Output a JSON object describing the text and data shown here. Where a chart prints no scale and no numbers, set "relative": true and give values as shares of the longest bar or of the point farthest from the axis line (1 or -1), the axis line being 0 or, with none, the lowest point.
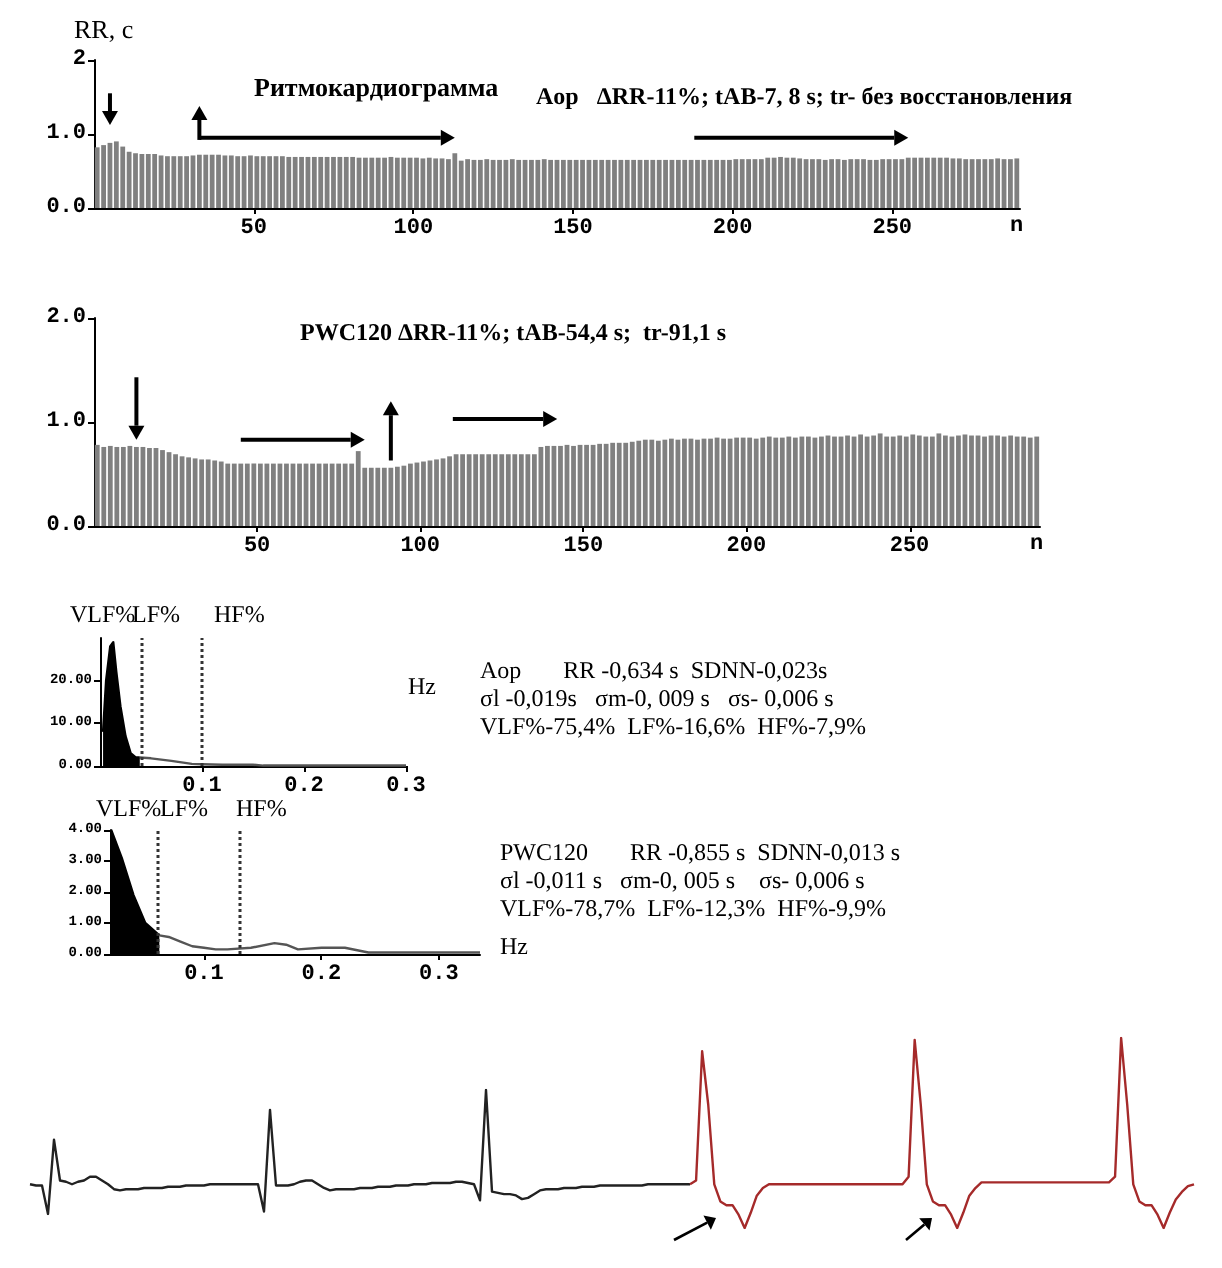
{
  "chart_data": [
    {
      "type": "bar",
      "title": "Ритмокардиограмма",
      "ylabel": "RR, с",
      "xlabel": "n",
      "annotations": [
        "Aop   ΔRR-11%; tAB-7, 8 s; tr- без восстановления"
      ],
      "color": "#808080",
      "xlim": [
        0,
        290
      ],
      "ylim": [
        0,
        2
      ],
      "xticks": [
        50,
        100,
        150,
        200,
        250
      ],
      "yticks": [
        {
          "value": 0,
          "label": "0.0"
        },
        {
          "value": 1,
          "label": "1.0"
        },
        {
          "value": 2,
          "label": "2"
        }
      ],
      "x": [
        1,
        3,
        5,
        7,
        9,
        11,
        13,
        15,
        17,
        19,
        21,
        23,
        25,
        27,
        29,
        31,
        33,
        35,
        37,
        39,
        41,
        43,
        45,
        47,
        49,
        51,
        53,
        55,
        57,
        59,
        61,
        63,
        65,
        67,
        69,
        71,
        73,
        75,
        77,
        79,
        81,
        83,
        85,
        87,
        89,
        91,
        93,
        95,
        97,
        99,
        101,
        103,
        105,
        107,
        109,
        111,
        113,
        115,
        117,
        119,
        121,
        123,
        125,
        127,
        129,
        131,
        133,
        135,
        137,
        139,
        141,
        143,
        145,
        147,
        149,
        151,
        153,
        155,
        157,
        159,
        161,
        163,
        165,
        167,
        169,
        171,
        173,
        175,
        177,
        179,
        181,
        183,
        185,
        187,
        189,
        191,
        193,
        195,
        197,
        199,
        201,
        203,
        205,
        207,
        209,
        211,
        213,
        215,
        217,
        219,
        221,
        223,
        225,
        227,
        229,
        231,
        233,
        235,
        237,
        239,
        241,
        243,
        245,
        247,
        249,
        251,
        253,
        255,
        257,
        259,
        261,
        263,
        265,
        267,
        269,
        271,
        273,
        275,
        277,
        279,
        281,
        283,
        285,
        287,
        289
      ],
      "values": [
        0.82,
        0.85,
        0.88,
        0.9,
        0.83,
        0.76,
        0.74,
        0.73,
        0.73,
        0.73,
        0.71,
        0.7,
        0.7,
        0.7,
        0.7,
        0.71,
        0.72,
        0.72,
        0.72,
        0.72,
        0.71,
        0.71,
        0.7,
        0.7,
        0.71,
        0.7,
        0.7,
        0.7,
        0.7,
        0.7,
        0.69,
        0.69,
        0.69,
        0.69,
        0.69,
        0.69,
        0.69,
        0.69,
        0.69,
        0.69,
        0.69,
        0.68,
        0.68,
        0.68,
        0.68,
        0.68,
        0.69,
        0.68,
        0.68,
        0.68,
        0.68,
        0.67,
        0.68,
        0.67,
        0.67,
        0.66,
        0.74,
        0.64,
        0.66,
        0.65,
        0.65,
        0.66,
        0.65,
        0.65,
        0.65,
        0.66,
        0.65,
        0.65,
        0.65,
        0.65,
        0.66,
        0.65,
        0.65,
        0.65,
        0.65,
        0.65,
        0.65,
        0.65,
        0.65,
        0.65,
        0.65,
        0.65,
        0.65,
        0.65,
        0.65,
        0.65,
        0.65,
        0.65,
        0.65,
        0.65,
        0.65,
        0.65,
        0.65,
        0.65,
        0.65,
        0.65,
        0.65,
        0.65,
        0.65,
        0.65,
        0.66,
        0.66,
        0.66,
        0.66,
        0.66,
        0.68,
        0.68,
        0.69,
        0.68,
        0.68,
        0.67,
        0.66,
        0.66,
        0.66,
        0.65,
        0.66,
        0.66,
        0.65,
        0.66,
        0.66,
        0.66,
        0.65,
        0.65,
        0.66,
        0.66,
        0.66,
        0.66,
        0.68,
        0.68,
        0.68,
        0.68,
        0.68,
        0.68,
        0.68,
        0.67,
        0.67,
        0.66,
        0.66,
        0.66,
        0.66,
        0.66,
        0.67,
        0.66,
        0.66,
        0.67
      ]
    },
    {
      "type": "bar",
      "xlabel": "n",
      "annotations": [
        "PWC120 ΔRR-11%; tAB-54,4 s;  tr-91,1 s"
      ],
      "color": "#808080",
      "xlim": [
        0,
        290
      ],
      "ylim": [
        0,
        2
      ],
      "xticks": [
        50,
        100,
        150,
        200,
        250
      ],
      "yticks": [
        {
          "value": 0,
          "label": "0.0"
        },
        {
          "value": 1,
          "label": "1.0"
        },
        {
          "value": 2,
          "label": "2.0"
        }
      ],
      "x": [
        1,
        3,
        5,
        7,
        9,
        11,
        13,
        15,
        17,
        19,
        21,
        23,
        25,
        27,
        29,
        31,
        33,
        35,
        37,
        39,
        41,
        43,
        45,
        47,
        49,
        51,
        53,
        55,
        57,
        59,
        61,
        63,
        65,
        67,
        69,
        71,
        73,
        75,
        77,
        79,
        81,
        83,
        85,
        87,
        89,
        91,
        93,
        95,
        97,
        99,
        101,
        103,
        105,
        107,
        109,
        111,
        113,
        115,
        117,
        119,
        121,
        123,
        125,
        127,
        129,
        131,
        133,
        135,
        137,
        139,
        141,
        143,
        145,
        147,
        149,
        151,
        153,
        155,
        157,
        159,
        161,
        163,
        165,
        167,
        169,
        171,
        173,
        175,
        177,
        179,
        181,
        183,
        185,
        187,
        189,
        191,
        193,
        195,
        197,
        199,
        201,
        203,
        205,
        207,
        209,
        211,
        213,
        215,
        217,
        219,
        221,
        223,
        225,
        227,
        229,
        231,
        233,
        235,
        237,
        239,
        241,
        243,
        245,
        247,
        249,
        251,
        253,
        255,
        257,
        259,
        261,
        263,
        265,
        267,
        269,
        271,
        273,
        275,
        277,
        279,
        281,
        283,
        285,
        287,
        289
      ],
      "values": [
        0.78,
        0.76,
        0.77,
        0.76,
        0.76,
        0.77,
        0.76,
        0.76,
        0.75,
        0.75,
        0.73,
        0.71,
        0.69,
        0.67,
        0.66,
        0.65,
        0.64,
        0.64,
        0.63,
        0.62,
        0.6,
        0.6,
        0.6,
        0.6,
        0.6,
        0.6,
        0.6,
        0.6,
        0.6,
        0.6,
        0.6,
        0.6,
        0.6,
        0.6,
        0.6,
        0.6,
        0.6,
        0.6,
        0.6,
        0.6,
        0.72,
        0.56,
        0.56,
        0.56,
        0.56,
        0.56,
        0.57,
        0.58,
        0.6,
        0.61,
        0.62,
        0.63,
        0.64,
        0.65,
        0.67,
        0.69,
        0.69,
        0.69,
        0.69,
        0.69,
        0.69,
        0.69,
        0.69,
        0.69,
        0.69,
        0.69,
        0.69,
        0.69,
        0.76,
        0.77,
        0.77,
        0.77,
        0.78,
        0.77,
        0.78,
        0.78,
        0.78,
        0.79,
        0.79,
        0.8,
        0.8,
        0.8,
        0.81,
        0.82,
        0.83,
        0.83,
        0.82,
        0.83,
        0.84,
        0.83,
        0.84,
        0.84,
        0.83,
        0.84,
        0.84,
        0.85,
        0.84,
        0.84,
        0.85,
        0.85,
        0.85,
        0.84,
        0.85,
        0.86,
        0.85,
        0.85,
        0.86,
        0.85,
        0.86,
        0.86,
        0.85,
        0.86,
        0.87,
        0.86,
        0.86,
        0.87,
        0.86,
        0.88,
        0.86,
        0.87,
        0.89,
        0.86,
        0.86,
        0.87,
        0.86,
        0.88,
        0.87,
        0.86,
        0.86,
        0.89,
        0.87,
        0.86,
        0.87,
        0.88,
        0.87,
        0.87,
        0.86,
        0.87,
        0.87,
        0.86,
        0.87,
        0.86,
        0.86,
        0.85,
        0.86
      ]
    },
    {
      "type": "line",
      "xlabel": "Hz",
      "annotations": [
        "VLF%",
        "LF%",
        "HF%",
        "Aop       RR -0,634 s  SDNN-0,023s",
        "σl -0,019s   σm-0, 009 s   σs- 0,006 s",
        "VLF%-75,4%  LF%-16,6%  HF%-7,9%"
      ],
      "xlim": [
        0,
        0.3
      ],
      "ylim": [
        0,
        30
      ],
      "xticks": [
        0.1,
        0.2,
        0.3
      ],
      "yticks": [
        {
          "value": 0,
          "label": "0.00"
        },
        {
          "value": 10,
          "label": "10.00"
        },
        {
          "value": 20,
          "label": "20.00"
        }
      ],
      "ref_lines": [
        {
          "axis": "x",
          "value": 0.039,
          "line_style": "dotted",
          "color": "#333333"
        },
        {
          "axis": "x",
          "value": 0.1,
          "line_style": "dotted",
          "color": "#333333"
        }
      ],
      "series": [
        {
          "type": "area",
          "color": "#000000",
          "x": [
            0.003,
            0.006,
            0.01,
            0.013,
            0.016,
            0.02,
            0.025,
            0.03,
            0.035,
            0.039
          ],
          "values": [
            8,
            20,
            28,
            29,
            22,
            14,
            7,
            3,
            2,
            2
          ]
        },
        {
          "color": "#555555",
          "x": [
            0.039,
            0.05,
            0.07,
            0.09,
            0.1,
            0.12,
            0.15,
            0.16,
            0.2,
            0.3
          ],
          "values": [
            2,
            1.8,
            1.2,
            0.5,
            0.4,
            0.3,
            0.3,
            0.1,
            0.1,
            0.1
          ]
        }
      ]
    },
    {
      "type": "line",
      "xlabel": "Hz",
      "annotations": [
        "VLF%",
        "LF%",
        "HF%",
        "PWC120       RR -0,855 s  SDNN-0,013 s",
        "σl -0,011 s   σm-0, 005 s    σs- 0,006 s",
        "VLF%-78,7%  LF%-12,3%  HF%-9,9%"
      ],
      "xlim": [
        0.02,
        0.335
      ],
      "ylim": [
        0,
        4
      ],
      "xticks": [
        0.1,
        0.2,
        0.3
      ],
      "yticks": [
        {
          "value": 0,
          "label": "0.00"
        },
        {
          "value": 1,
          "label": "1.00"
        },
        {
          "value": 2,
          "label": "2.00"
        },
        {
          "value": 3,
          "label": "3.00"
        },
        {
          "value": 4,
          "label": "4.00"
        }
      ],
      "ref_lines": [
        {
          "axis": "x",
          "value": 0.062,
          "line_style": "dotted",
          "color": "#333333"
        },
        {
          "axis": "x",
          "value": 0.13,
          "line_style": "dotted",
          "color": "#333333"
        }
      ],
      "series": [
        {
          "type": "area",
          "color": "#000000",
          "x": [
            0.021,
            0.03,
            0.04,
            0.05,
            0.062
          ],
          "values": [
            4,
            3.1,
            1.9,
            1,
            0.6
          ]
        },
        {
          "color": "#555555",
          "x": [
            0.062,
            0.07,
            0.08,
            0.09,
            0.1,
            0.11,
            0.12,
            0.14,
            0.16,
            0.17,
            0.18,
            0.2,
            0.22,
            0.24,
            0.27,
            0.3,
            0.335
          ],
          "values": [
            0.6,
            0.55,
            0.4,
            0.25,
            0.2,
            0.15,
            0.15,
            0.2,
            0.35,
            0.3,
            0.15,
            0.2,
            0.2,
            0.05,
            0.05,
            0.05,
            0.05
          ]
        }
      ]
    },
    {
      "type": "line",
      "relative": true,
      "color": "#222222",
      "categories": [
        null,
        null,
        null,
        null,
        null,
        null,
        null,
        null,
        null,
        null,
        null,
        null,
        null,
        null,
        null,
        null,
        null,
        null,
        null,
        null,
        null,
        null,
        null,
        null,
        null,
        null,
        null,
        null,
        null,
        null,
        null,
        null,
        null,
        null,
        null,
        null,
        null,
        null,
        null,
        null,
        null,
        null,
        null,
        null,
        null,
        null,
        null,
        null,
        null,
        null,
        null,
        null,
        null,
        null,
        null,
        null,
        null,
        null,
        null,
        null,
        null,
        null,
        null,
        null,
        null,
        null,
        null,
        null,
        null,
        null,
        null,
        null,
        null,
        null,
        null,
        null,
        null,
        null,
        null,
        null,
        null,
        null,
        null,
        null,
        null,
        null,
        null,
        null,
        null,
        null,
        null,
        null,
        null,
        null,
        null,
        null,
        null,
        null,
        null,
        null,
        null,
        null,
        null,
        null,
        null,
        null,
        null,
        null,
        null,
        null,
        null
      ],
      "values": [
        0.24,
        0.23,
        0.23,
        0,
        0.6,
        0.27,
        0.26,
        0.24,
        0.26,
        0.27,
        0.3,
        0.3,
        0.27,
        0.24,
        0.2,
        0.19,
        0.2,
        0.2,
        0.2,
        0.21,
        0.21,
        0.21,
        0.21,
        0.22,
        0.22,
        0.22,
        0.23,
        0.23,
        0.23,
        0.23,
        0.24,
        0.24,
        0.24,
        0.24,
        0.24,
        0.24,
        0.24,
        0.24,
        0.24,
        0.02,
        0.84,
        0.23,
        0.23,
        0.23,
        0.24,
        0.26,
        0.27,
        0.27,
        0.24,
        0.21,
        0.19,
        0.2,
        0.2,
        0.2,
        0.2,
        0.21,
        0.21,
        0.21,
        0.22,
        0.22,
        0.22,
        0.23,
        0.23,
        0.23,
        0.24,
        0.24,
        0.24,
        0.25,
        0.25,
        0.25,
        0.25,
        0.26,
        0.26,
        0.25,
        0.24,
        0.11,
        1,
        0.18,
        0.17,
        0.16,
        0.16,
        0.15,
        0.12,
        0.13,
        0.16,
        0.19,
        0.2,
        0.2,
        0.2,
        0.21,
        0.21,
        0.21,
        0.22,
        0.22,
        0.22,
        0.23,
        0.23,
        0.23,
        0.23,
        0.23,
        0.23,
        0.23,
        0.23,
        0.24,
        0.24,
        0.24,
        0.24,
        0.24,
        0.24,
        0.24,
        0.24
      ]
    },
    {
      "type": "line",
      "relative": true,
      "color": "#a52a2a",
      "categories": [
        null,
        null,
        null,
        null,
        null,
        null,
        null,
        null,
        null,
        null,
        null,
        null,
        null,
        null,
        null,
        null,
        null,
        null,
        null,
        null,
        null,
        null,
        null,
        null,
        null,
        null,
        null,
        null,
        null,
        null,
        null,
        null,
        null,
        null,
        null,
        null,
        null,
        null,
        null,
        null,
        null,
        null,
        null,
        null,
        null,
        null,
        null,
        null,
        null,
        null,
        null,
        null,
        null,
        null,
        null,
        null,
        null,
        null,
        null,
        null,
        null,
        null,
        null,
        null,
        null,
        null,
        null,
        null,
        null,
        null,
        null,
        null,
        null,
        null,
        null,
        null,
        null,
        null,
        null,
        null,
        null,
        null,
        null,
        null
      ],
      "values": [
        0.23,
        0.25,
        0.93,
        0.65,
        0.23,
        0.14,
        0.12,
        0.12,
        0.07,
        0,
        0.08,
        0.17,
        0.21,
        0.23,
        0.23,
        0.23,
        0.23,
        0.23,
        0.23,
        0.23,
        0.23,
        0.23,
        0.23,
        0.23,
        0.23,
        0.23,
        0.23,
        0.23,
        0.23,
        0.23,
        0.23,
        0.23,
        0.23,
        0.23,
        0.23,
        0.23,
        0.27,
        0.99,
        0.65,
        0.23,
        0.14,
        0.12,
        0.12,
        0.07,
        0,
        0.08,
        0.17,
        0.21,
        0.24,
        0.24,
        0.24,
        0.24,
        0.24,
        0.24,
        0.24,
        0.24,
        0.24,
        0.24,
        0.24,
        0.24,
        0.24,
        0.24,
        0.24,
        0.24,
        0.24,
        0.24,
        0.24,
        0.24,
        0.24,
        0.24,
        0.27,
        1,
        0.65,
        0.23,
        0.14,
        0.12,
        0.12,
        0.07,
        0,
        0.08,
        0.15,
        0.19,
        0.22,
        0.23
      ]
    }
  ]
}
